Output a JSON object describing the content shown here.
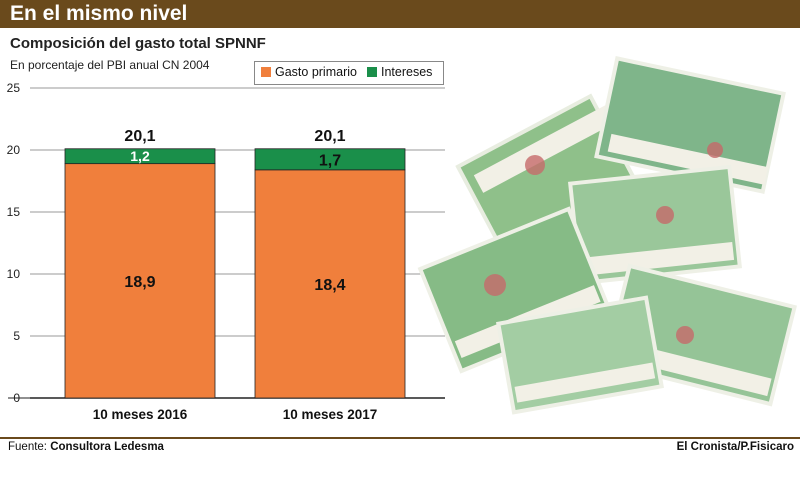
{
  "header": {
    "title": "En el mismo nivel",
    "subtitle": "Composición del gasto total SPNNF",
    "units": "En porcentaje del PBI anual CN 2004"
  },
  "legend": [
    {
      "label": "Gasto primario",
      "color": "#f07f3c"
    },
    {
      "label": "Intereses",
      "color": "#1a8f4a"
    }
  ],
  "chart_data": {
    "type": "bar",
    "stacked": true,
    "title": "Composición del gasto total SPNNF",
    "subtitle": "En porcentaje del PBI anual CN 2004",
    "categories": [
      "10 meses 2016",
      "10 meses 2017"
    ],
    "series": [
      {
        "name": "Gasto primario",
        "values": [
          18.9,
          18.4
        ],
        "labels": [
          "18,9",
          "18,4"
        ],
        "color": "#f07f3c"
      },
      {
        "name": "Intereses",
        "values": [
          1.2,
          1.7
        ],
        "labels": [
          "1,2",
          "1,7"
        ],
        "color": "#1a8f4a"
      }
    ],
    "totals": [
      20.1,
      20.1
    ],
    "total_labels": [
      "20,1",
      "20,1"
    ],
    "ylim": [
      0,
      25
    ],
    "yticks": [
      0,
      5,
      10,
      15,
      20,
      25
    ],
    "grid": true,
    "legend_position": "top"
  },
  "footer": {
    "source_label": "Fuente:",
    "source_value": "Consultora Ledesma",
    "credit": "El Cronista/P.Fisicaro"
  }
}
